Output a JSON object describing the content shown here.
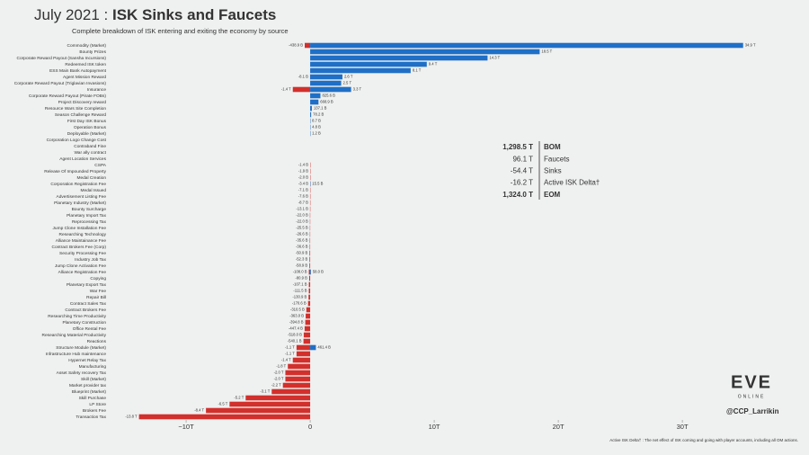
{
  "title_prefix": "July 2021 :",
  "chart_data": {
    "type": "bar",
    "orientation": "horizontal",
    "title": "ISK Sinks and Faucets",
    "subtitle": "Complete breakdown of ISK entering and exiting the economy by source",
    "categories": [
      "Commodity (Market)",
      "Bounty Prizes",
      "Corporate Reward Payout (Sansha Incursions)",
      "Redeemed ISK token",
      "ESS Main Bank Autopayment",
      "Agent Mission Reward",
      "Corporate Reward Payout (Triglavian Invasions)",
      "Insurance",
      "Corporate Reward Payout (Pirate FOBs)",
      "Project Discovery reward",
      "Resource Wars Site Completion",
      "Season Challenge Reward",
      "First Day ISK Bonus",
      "Operation Bonus",
      "Deployable (Market)",
      "Corporation Logo Change Cost",
      "Contraband Fine",
      "War ally contract",
      "Agent Location Services",
      "CSPA",
      "Release Of Impounded Property",
      "Medal Creation",
      "Corporation Registration Fee",
      "Medal Issued",
      "Advertisement Listing Fee",
      "Planetary Industry (Market)",
      "Bounty Surcharge",
      "Planetary Import Tax",
      "Reprocessing Tax",
      "Jump Clone Installation Fee",
      "Researching Technology",
      "Alliance Maintainance Fee",
      "Contract Brokers Fee (Corp)",
      "Security Processing Fee",
      "Industry Job Tax",
      "Jump Clone Activation Fee",
      "Alliance Registration Fee",
      "Copying",
      "Planetary Export Tax",
      "War Fee",
      "Repair Bill",
      "Contract Sales Tax",
      "Contract Brokers Fee",
      "Researching Time Productivity",
      "Planetary Construction",
      "Office Rental Fee",
      "Researching Material Productivity",
      "Reactions",
      "Structure Module (Market)",
      "Infrastructure Hub maintenance",
      "Hypernet Relay Tax",
      "Manufacturing",
      "Asset Safety recovery Tax",
      "Skill (Market)",
      "Market provider tax",
      "Blueprint (Market)",
      "Skill Purchase",
      "LP Store",
      "Brokers Fee",
      "Transaction Tax"
    ],
    "series": [
      {
        "name": "Sinks",
        "color": "#d2302c",
        "values": [
          -0.4389,
          null,
          null,
          null,
          null,
          -0.0081,
          null,
          -1.4,
          null,
          null,
          null,
          null,
          null,
          null,
          null,
          null,
          null,
          null,
          null,
          -0.0014,
          -0.0019,
          -0.002,
          -0.0034,
          -0.0071,
          -0.0076,
          -0.0087,
          -0.0131,
          -0.022,
          -0.022,
          -0.0255,
          -0.0266,
          -0.0356,
          -0.0366,
          -0.0509,
          -0.0523,
          -0.0589,
          -0.108,
          -0.0809,
          -0.1071,
          -0.1115,
          -0.1309,
          -0.1706,
          -0.3105,
          -0.363,
          -0.3948,
          -0.4474,
          -0.518,
          -0.5401,
          -1.1,
          -1.1,
          -1.4,
          -1.8,
          -2.0,
          -2.0,
          -2.2,
          -3.1,
          -5.2,
          -6.5,
          -8.4,
          -13.8
        ],
        "value_labels": [
          "-438.9 B",
          null,
          null,
          null,
          null,
          "-8.1 B",
          null,
          "-1.4 T",
          null,
          null,
          null,
          null,
          null,
          null,
          null,
          null,
          null,
          null,
          null,
          "-1.4 B",
          "-1.9 B",
          "-2.0 B",
          "-3.4 B",
          "-7.1 B",
          "-7.6 B",
          "-8.7 B",
          "-13.1 B",
          "-22.0 B",
          "-22.0 B",
          "-25.5 B",
          "-26.6 B",
          "-35.6 B",
          "-36.6 B",
          "-50.9 B",
          "-52.3 B",
          "-58.9 B",
          "-108.0 B",
          "-80.9 B",
          "-107.1 B",
          "-111.5 B",
          "-130.9 B",
          "-170.6 B",
          "-310.5 B",
          "-363.0 B",
          "-394.8 B",
          "-447.4 B",
          "-518.0 B",
          "-540.1 B",
          "-1.1 T",
          "-1.1 T",
          "-1.4 T",
          "-1.8 T",
          "-2.0 T",
          "-2.0 T",
          "-2.2 T",
          "-3.1 T",
          "-5.2 T",
          "-6.5 T",
          "-8.4 T",
          "-13.8 T"
        ]
      },
      {
        "name": "Faucets",
        "color": "#1f6fc6",
        "values": [
          34.9,
          18.5,
          14.3,
          9.4,
          8.1,
          2.6,
          2.5,
          3.3,
          0.8256,
          0.6689,
          0.1371,
          0.0782,
          0.0087,
          0.0048,
          0.0012,
          null,
          null,
          null,
          null,
          null,
          null,
          null,
          0.0155,
          null,
          null,
          null,
          null,
          null,
          null,
          null,
          null,
          null,
          null,
          null,
          null,
          null,
          0.058,
          null,
          null,
          null,
          null,
          null,
          null,
          null,
          null,
          null,
          null,
          null,
          0.4614,
          null,
          null,
          null,
          null,
          null,
          null,
          null,
          null,
          null,
          null,
          null
        ],
        "value_labels": [
          "34.9 T",
          "18.5 T",
          "14.3 T",
          "9.4 T",
          "8.1 T",
          "2.6 T",
          "2.5 T",
          "3.3 T",
          "825.6 B",
          "668.9 B",
          "137.1 B",
          "78.2 B",
          "8.7 B",
          "4.8 B",
          "1.2 B",
          null,
          null,
          null,
          null,
          null,
          null,
          null,
          "15.5 B",
          null,
          null,
          null,
          null,
          null,
          null,
          null,
          null,
          null,
          null,
          null,
          null,
          null,
          "58.0 B",
          null,
          null,
          null,
          null,
          null,
          null,
          null,
          null,
          null,
          null,
          null,
          "461.4 B",
          null,
          null,
          null,
          null,
          null,
          null,
          null,
          null,
          null,
          null,
          null
        ]
      }
    ],
    "xlim": [
      -15.8,
      35.5
    ],
    "xticks": [
      {
        "value": -10,
        "label": "−10T"
      },
      0,
      {
        "value": 10,
        "label": "10T"
      },
      {
        "value": 20,
        "label": "20T"
      },
      {
        "value": 30,
        "label": "30T"
      }
    ],
    "summary": [
      {
        "value": 1298.5,
        "value_label": "1,298.5 T",
        "name": "BOM",
        "color": "#333333"
      },
      {
        "value": 96.1,
        "value_label": "96.1 T",
        "name": "Faucets",
        "color": "#1f6fc6"
      },
      {
        "value": -54.4,
        "value_label": "-54.4 T",
        "name": "Sinks",
        "color": "#d2302c"
      },
      {
        "value": -16.2,
        "value_label": "-16.2 T",
        "name": "Active ISK Delta†",
        "color": "#d2302c"
      },
      {
        "value": 1324.0,
        "value_label": "1,324.0 T",
        "name": "EOM",
        "color": "#333333"
      }
    ],
    "footnote": "Active ISK Delta† : The net effect of ISK coming and going with player accounts, including all OM actions."
  },
  "logo": {
    "main": "EVE",
    "sub": "ONLINE"
  },
  "handle": "@CCP_Larrikin"
}
